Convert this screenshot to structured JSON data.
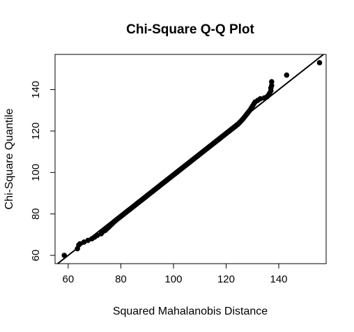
{
  "chart_data": {
    "type": "scatter",
    "title": "Chi-Square Q-Q Plot",
    "xlabel": "Squared Mahalanobis Distance",
    "ylabel": "Chi-Square Quantile",
    "xlim": [
      55,
      158
    ],
    "ylim": [
      56,
      157
    ],
    "x_ticks": [
      60,
      80,
      100,
      120,
      140
    ],
    "y_ticks": [
      60,
      80,
      100,
      120,
      140
    ],
    "grid": false,
    "reference_line": {
      "intercept": 0,
      "slope": 1
    },
    "points": [
      [
        58.5,
        60.0
      ],
      [
        63.5,
        63.2
      ],
      [
        64.0,
        65.0
      ],
      [
        64.5,
        65.6
      ],
      [
        66.0,
        66.4
      ],
      [
        67.5,
        67.2
      ],
      [
        69.0,
        68.0
      ],
      [
        70.0,
        68.8
      ],
      [
        71.0,
        69.6
      ],
      [
        72.5,
        70.4
      ],
      [
        73.0,
        71.2
      ],
      [
        74.0,
        72.0
      ],
      [
        74.5,
        72.6
      ],
      [
        75.0,
        73.2
      ],
      [
        75.5,
        73.8
      ],
      [
        76.0,
        74.4
      ],
      [
        76.5,
        75.0
      ],
      [
        77.0,
        75.6
      ],
      [
        77.5,
        76.2
      ],
      [
        78.0,
        76.8
      ],
      [
        78.5,
        77.3
      ],
      [
        79.0,
        77.8
      ],
      [
        79.5,
        78.3
      ],
      [
        80.0,
        78.8
      ],
      [
        80.5,
        79.3
      ],
      [
        81.0,
        79.8
      ],
      [
        81.5,
        80.3
      ],
      [
        82.0,
        80.8
      ],
      [
        82.5,
        81.3
      ],
      [
        83.0,
        81.8
      ],
      [
        83.5,
        82.3
      ],
      [
        84.0,
        82.8
      ],
      [
        84.5,
        83.3
      ],
      [
        85.0,
        83.8
      ],
      [
        85.5,
        84.3
      ],
      [
        86.0,
        84.8
      ],
      [
        86.5,
        85.3
      ],
      [
        87.0,
        85.8
      ],
      [
        87.5,
        86.3
      ],
      [
        88.0,
        86.8
      ],
      [
        88.5,
        87.3
      ],
      [
        89.0,
        87.8
      ],
      [
        89.5,
        88.3
      ],
      [
        90.0,
        88.8
      ],
      [
        90.5,
        89.3
      ],
      [
        91.0,
        89.8
      ],
      [
        91.5,
        90.3
      ],
      [
        92.0,
        90.8
      ],
      [
        92.5,
        91.3
      ],
      [
        93.0,
        91.8
      ],
      [
        93.5,
        92.3
      ],
      [
        94.0,
        92.8
      ],
      [
        94.5,
        93.3
      ],
      [
        95.0,
        93.8
      ],
      [
        95.5,
        94.3
      ],
      [
        96.0,
        94.8
      ],
      [
        96.5,
        95.3
      ],
      [
        97.0,
        95.8
      ],
      [
        97.5,
        96.3
      ],
      [
        98.0,
        96.8
      ],
      [
        98.5,
        97.3
      ],
      [
        99.0,
        97.8
      ],
      [
        99.5,
        98.3
      ],
      [
        100.0,
        98.8
      ],
      [
        100.5,
        99.3
      ],
      [
        101.0,
        99.8
      ],
      [
        101.5,
        100.3
      ],
      [
        102.0,
        100.8
      ],
      [
        102.5,
        101.3
      ],
      [
        103.0,
        101.8
      ],
      [
        103.5,
        102.3
      ],
      [
        104.0,
        102.8
      ],
      [
        104.5,
        103.3
      ],
      [
        105.0,
        103.8
      ],
      [
        105.5,
        104.3
      ],
      [
        106.0,
        104.8
      ],
      [
        106.5,
        105.3
      ],
      [
        107.0,
        105.8
      ],
      [
        107.5,
        106.3
      ],
      [
        108.0,
        106.8
      ],
      [
        108.5,
        107.3
      ],
      [
        109.0,
        107.8
      ],
      [
        109.5,
        108.3
      ],
      [
        110.0,
        108.8
      ],
      [
        110.5,
        109.3
      ],
      [
        111.0,
        109.8
      ],
      [
        111.5,
        110.3
      ],
      [
        112.0,
        110.8
      ],
      [
        112.5,
        111.3
      ],
      [
        113.0,
        111.8
      ],
      [
        113.5,
        112.3
      ],
      [
        114.0,
        112.8
      ],
      [
        114.5,
        113.3
      ],
      [
        115.0,
        113.8
      ],
      [
        115.5,
        114.3
      ],
      [
        116.0,
        114.8
      ],
      [
        116.5,
        115.3
      ],
      [
        117.0,
        115.8
      ],
      [
        117.5,
        116.3
      ],
      [
        118.0,
        116.8
      ],
      [
        118.5,
        117.3
      ],
      [
        119.0,
        117.8
      ],
      [
        119.5,
        118.3
      ],
      [
        120.0,
        118.8
      ],
      [
        120.5,
        119.3
      ],
      [
        121.0,
        119.8
      ],
      [
        121.5,
        120.3
      ],
      [
        122.0,
        120.8
      ],
      [
        122.5,
        121.3
      ],
      [
        123.0,
        121.8
      ],
      [
        123.5,
        122.3
      ],
      [
        124.0,
        122.8
      ],
      [
        124.5,
        123.3
      ],
      [
        125.0,
        124.0
      ],
      [
        125.5,
        124.6
      ],
      [
        126.0,
        125.3
      ],
      [
        126.5,
        126.0
      ],
      [
        127.0,
        126.8
      ],
      [
        127.5,
        127.6
      ],
      [
        128.0,
        128.4
      ],
      [
        128.5,
        129.2
      ],
      [
        129.0,
        130.0
      ],
      [
        129.5,
        131.0
      ],
      [
        130.0,
        132.0
      ],
      [
        130.5,
        133.0
      ],
      [
        131.0,
        134.0
      ],
      [
        132.0,
        134.8
      ],
      [
        133.0,
        135.6
      ],
      [
        134.5,
        136.0
      ],
      [
        135.5,
        136.5
      ],
      [
        136.0,
        137.2
      ],
      [
        136.5,
        138.2
      ],
      [
        137.0,
        139.4
      ],
      [
        137.0,
        140.8
      ],
      [
        137.3,
        142.0
      ],
      [
        137.3,
        143.8
      ],
      [
        143.0,
        147.0
      ],
      [
        155.5,
        153.0
      ]
    ]
  }
}
